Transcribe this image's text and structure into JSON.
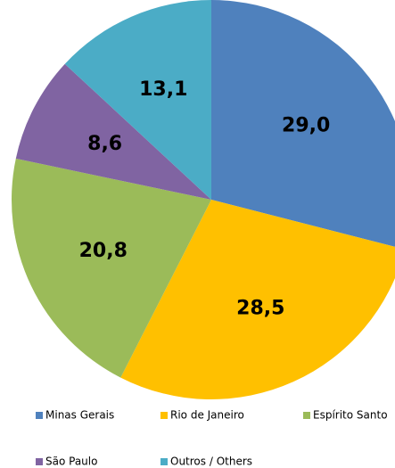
{
  "chart_data": {
    "type": "pie",
    "categories": [
      "Minas Gerais",
      "Rio de Janeiro",
      "Espírito Santo",
      "São Paulo",
      "Outros / Others"
    ],
    "values": [
      29.0,
      28.5,
      20.8,
      8.6,
      13.1
    ],
    "value_labels": [
      "29,0",
      "28,5",
      "20,8",
      "8,6",
      "13,1"
    ],
    "colors": [
      "#4f81bd",
      "#ffc000",
      "#9bbb59",
      "#8064a2",
      "#4bacc6"
    ],
    "legend": "bottom"
  }
}
